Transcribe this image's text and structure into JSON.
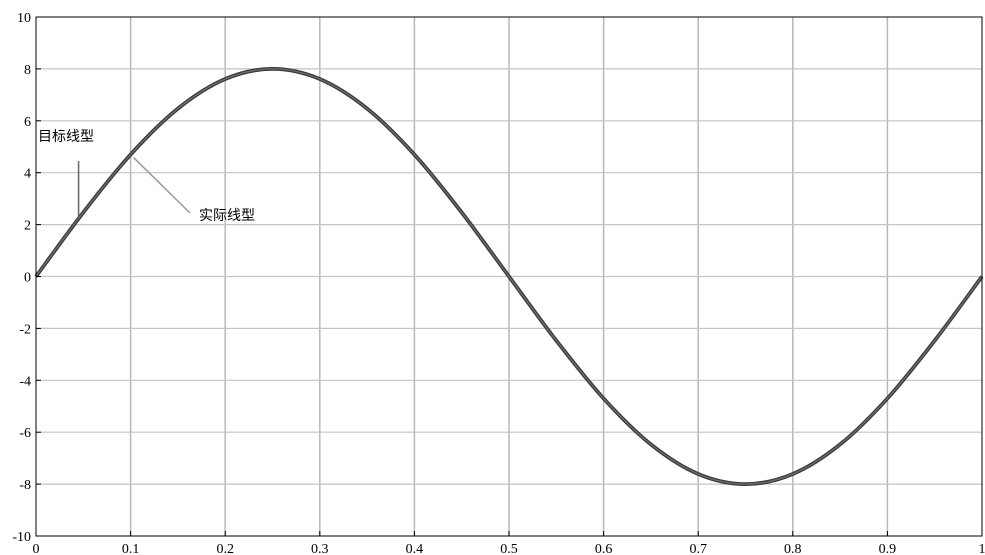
{
  "chart_data": {
    "type": "line",
    "title": "",
    "xlabel": "",
    "ylabel": "",
    "xlim": [
      0,
      1
    ],
    "ylim": [
      -10,
      10
    ],
    "grid": true,
    "x_ticks": [
      "0",
      "0.1",
      "0.2",
      "0.3",
      "0.4",
      "0.5",
      "0.6",
      "0.7",
      "0.8",
      "0.9",
      "1"
    ],
    "y_ticks": [
      "10",
      "8",
      "6",
      "4",
      "2",
      "0",
      "-2",
      "-4",
      "-6",
      "-8",
      "-10"
    ],
    "series": [
      {
        "name": "目标线型",
        "x": [
          0,
          0.05,
          0.1,
          0.15,
          0.2,
          0.25,
          0.3,
          0.35,
          0.4,
          0.45,
          0.5,
          0.55,
          0.6,
          0.65,
          0.7,
          0.75,
          0.8,
          0.85,
          0.9,
          0.95,
          1
        ],
        "y": [
          0,
          2.47,
          4.7,
          6.47,
          7.61,
          8,
          7.61,
          6.47,
          4.7,
          2.47,
          0,
          -2.47,
          -4.7,
          -6.47,
          -7.61,
          -8,
          -7.61,
          -6.47,
          -4.7,
          -2.47,
          0
        ]
      },
      {
        "name": "实际线型",
        "x": [
          0,
          0.05,
          0.1,
          0.15,
          0.2,
          0.25,
          0.3,
          0.35,
          0.4,
          0.45,
          0.5,
          0.55,
          0.6,
          0.65,
          0.7,
          0.75,
          0.8,
          0.85,
          0.9,
          0.95,
          1
        ],
        "y": [
          0,
          2.47,
          4.7,
          6.47,
          7.61,
          8,
          7.61,
          6.47,
          4.7,
          2.47,
          0,
          -2.47,
          -4.7,
          -6.47,
          -7.61,
          -8,
          -7.61,
          -6.47,
          -4.7,
          -2.47,
          0
        ]
      }
    ],
    "annotations": [
      {
        "text": "目标线型",
        "x": 0.045,
        "y": 2.2
      },
      {
        "text": "实际线型",
        "x": 0.1,
        "y": 4.8
      }
    ]
  }
}
